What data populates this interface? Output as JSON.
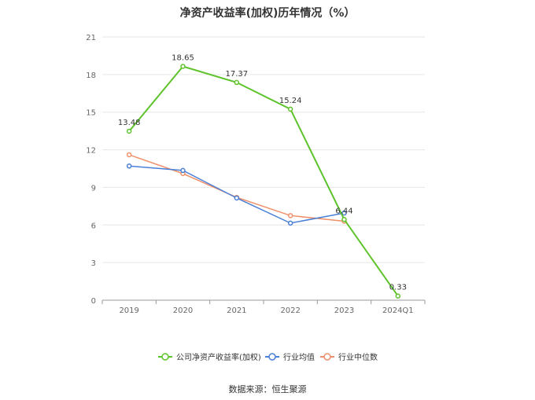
{
  "chart_data": {
    "type": "line",
    "title": "净资产收益率(加权)历年情况（%）",
    "categories": [
      "2019",
      "2020",
      "2021",
      "2022",
      "2023",
      "2024Q1"
    ],
    "y_ticks": [
      "0",
      "3",
      "6",
      "9",
      "12",
      "15",
      "18",
      "21"
    ],
    "ylim": [
      0,
      21
    ],
    "grid": true,
    "legend_position": "bottom",
    "series": [
      {
        "name": "公司净资产收益率(加权)",
        "color": "#5ec32b",
        "values": [
          13.48,
          18.65,
          17.37,
          15.24,
          6.44,
          0.33
        ],
        "labels": [
          "13.48",
          "18.65",
          "17.37",
          "15.24",
          "6.44",
          "0.33"
        ]
      },
      {
        "name": "行业均值",
        "color": "#4a7fd6",
        "values": [
          10.7,
          10.35,
          8.15,
          6.15,
          6.95,
          null
        ]
      },
      {
        "name": "行业中位数",
        "color": "#f0906a",
        "values": [
          11.6,
          10.1,
          8.2,
          6.75,
          6.3,
          null
        ]
      }
    ]
  },
  "source": "数据来源：恒生聚源"
}
